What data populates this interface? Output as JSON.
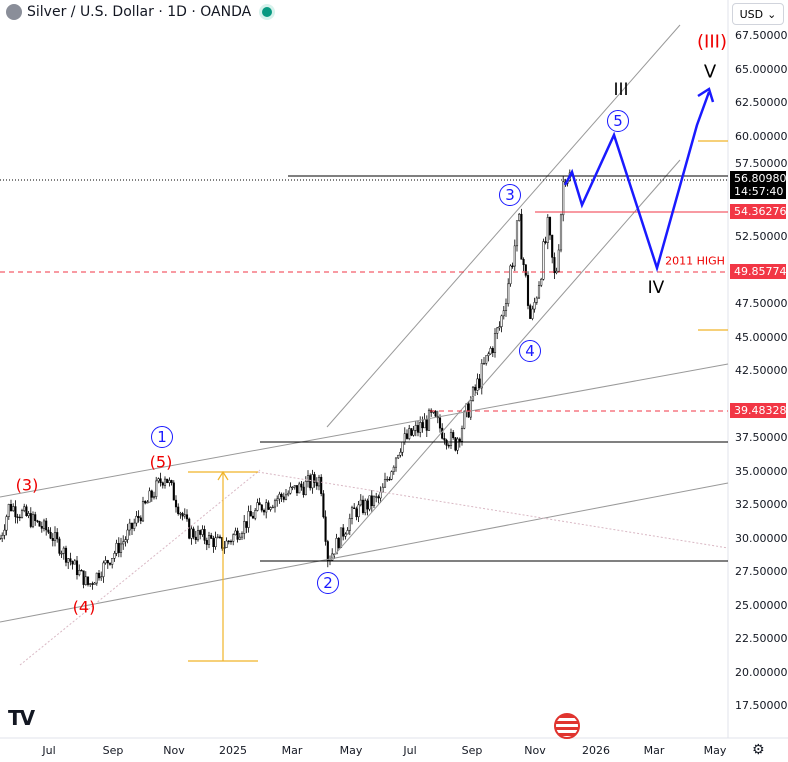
{
  "header": {
    "title": "Silver / U.S. Dollar · 1D · OANDA",
    "currency": "USD"
  },
  "price_axis": [
    "67.50000",
    "65.00000",
    "62.50000",
    "60.00000",
    "57.50000",
    "52.50000",
    "47.50000",
    "45.00000",
    "42.50000",
    "37.50000",
    "35.00000",
    "32.50000",
    "30.00000",
    "27.50000",
    "25.00000",
    "22.50000",
    "20.00000",
    "17.50000"
  ],
  "time_axis": [
    "Jul",
    "Sep",
    "Nov",
    "2025",
    "Mar",
    "May",
    "Jul",
    "Sep",
    "Nov",
    "2026",
    "Mar",
    "May"
  ],
  "badges": [
    {
      "price": "56.80980",
      "sub": "14:57:40",
      "color": "#000000"
    },
    {
      "price": "54.36276",
      "color": "#f23645"
    },
    {
      "price": "49.85774",
      "color": "#f23645"
    },
    {
      "price": "39.48328",
      "color": "#f23645"
    }
  ],
  "annotations": {
    "red_labels": [
      "(3)",
      "(5)",
      "(4)",
      "(III)"
    ],
    "circle_labels": [
      "1",
      "2",
      "3",
      "4",
      "5"
    ],
    "roman_labels": [
      "III",
      "IV",
      "V"
    ],
    "high_label": "2011  HIGH"
  },
  "chart_data": {
    "type": "candlestick",
    "title": "Silver / U.S. Dollar · 1D · OANDA",
    "ylim": [
      16,
      70
    ],
    "x_unit": "months since Jul 2024",
    "key_points": [
      [
        -1.6,
        30
      ],
      [
        -1.3,
        32.5
      ],
      [
        0,
        30.5
      ],
      [
        1.3,
        26.5
      ],
      [
        2.5,
        30
      ],
      [
        3.8,
        34.8
      ],
      [
        4.6,
        30.5
      ],
      [
        5.75,
        29.5
      ],
      [
        7,
        32.5
      ],
      [
        8.9,
        34.5
      ],
      [
        9.15,
        28.4
      ],
      [
        10,
        32
      ],
      [
        10.85,
        33
      ],
      [
        11.5,
        37
      ],
      [
        12.55,
        39
      ],
      [
        13.3,
        37
      ],
      [
        13.8,
        40
      ],
      [
        14.8,
        46
      ],
      [
        15.4,
        53.5
      ],
      [
        15.8,
        46
      ],
      [
        16.35,
        53
      ],
      [
        16.6,
        49
      ],
      [
        16.9,
        57.8
      ],
      [
        17.1,
        56.8
      ]
    ],
    "last_price": 56.8098
  }
}
